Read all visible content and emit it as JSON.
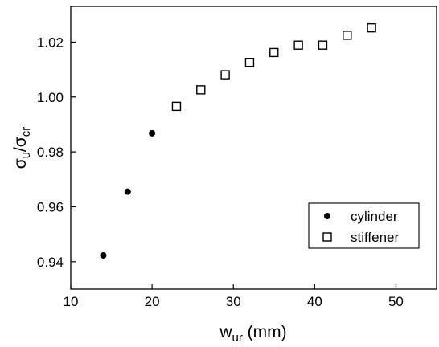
{
  "chart_data": {
    "type": "scatter",
    "xlabel": {
      "main": "w",
      "sub": "ur",
      "unit": " (mm)"
    },
    "ylabel": {
      "main": "σ",
      "sub1": "u",
      "slash": "/σ",
      "sub2": "cr"
    },
    "xlim": [
      10,
      55
    ],
    "ylim": [
      0.93,
      1.033
    ],
    "xticks": [
      10,
      20,
      30,
      40,
      50
    ],
    "yticks": [
      0.94,
      0.96,
      0.98,
      1.0,
      1.02
    ],
    "xtick_labels": [
      "10",
      "20",
      "30",
      "40",
      "50"
    ],
    "ytick_labels": [
      "0.94",
      "0.96",
      "0.98",
      "1.00",
      "1.02"
    ],
    "grid": false,
    "legend_position": "bottom-right",
    "series": [
      {
        "name": "cylinder",
        "marker": "filled-circle",
        "color": "#000000",
        "x": [
          14,
          17,
          20
        ],
        "y": [
          0.9423,
          0.9655,
          0.9868
        ]
      },
      {
        "name": "stiffener",
        "marker": "open-square",
        "color": "#000000",
        "x": [
          23,
          26,
          29,
          32,
          35,
          38,
          41,
          44,
          47
        ],
        "y": [
          0.9966,
          1.0026,
          1.0081,
          1.0126,
          1.0162,
          1.0189,
          1.0189,
          1.0225,
          1.0252
        ]
      }
    ]
  }
}
